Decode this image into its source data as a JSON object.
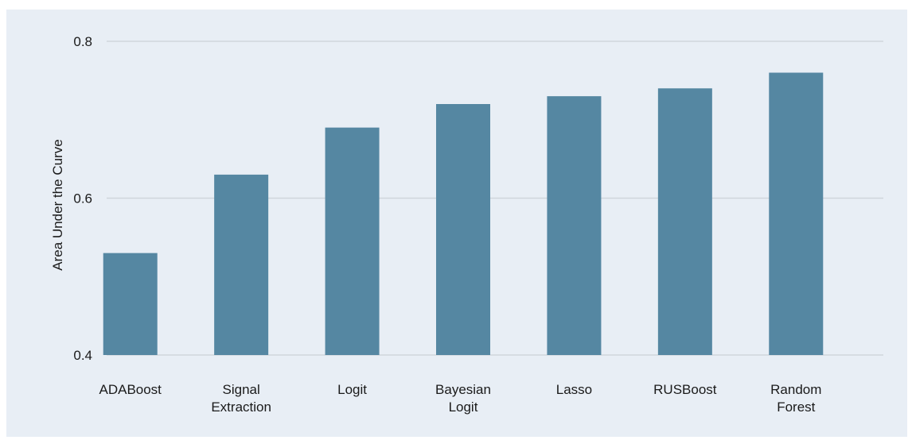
{
  "chart_data": {
    "type": "bar",
    "title": "",
    "xlabel": "",
    "ylabel": "Area Under the Curve",
    "ylim": [
      0.4,
      0.8
    ],
    "yticks": [
      "0.4",
      "0.6",
      "0.8"
    ],
    "grid": true,
    "legend": "none",
    "categories": [
      [
        "ADABoost"
      ],
      [
        "Signal",
        "Extraction"
      ],
      [
        "Logit"
      ],
      [
        "Bayesian",
        "Logit"
      ],
      [
        "Lasso"
      ],
      [
        "RUSBoost"
      ],
      [
        "Random",
        "Forest"
      ]
    ],
    "values": [
      0.53,
      0.63,
      0.69,
      0.72,
      0.73,
      0.74,
      0.76
    ]
  },
  "colors": {
    "background": "#e8eef5",
    "bar": "#5587a2",
    "grid": "#cfd5dc",
    "text": "#1a1a1a"
  }
}
